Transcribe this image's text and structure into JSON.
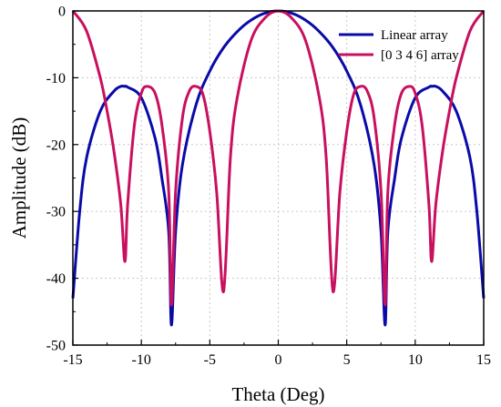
{
  "chart_data": {
    "type": "line",
    "xlabel": "Theta (Deg)",
    "ylabel": "Amplitude (dB)",
    "xlim": [
      -15,
      15
    ],
    "ylim": [
      -50,
      0
    ],
    "x_ticks": [
      -15,
      -10,
      -5,
      0,
      5,
      10,
      15
    ],
    "y_ticks": [
      0,
      -10,
      -20,
      -30,
      -40,
      -50
    ],
    "grid": true,
    "legend_position": "top-right",
    "series": [
      {
        "name": "Linear array",
        "color": "#0a0aa8",
        "x": [
          -15,
          -14.5,
          -14,
          -13,
          -12,
          -11.5,
          -11.2,
          -11,
          -10,
          -9,
          -8.5,
          -8,
          -7.8,
          -7.5,
          -7,
          -6,
          -5,
          -4,
          -3,
          -2,
          -1,
          0,
          1,
          2,
          3,
          4,
          5,
          6,
          7,
          7.5,
          7.8,
          8,
          8.5,
          9,
          10,
          11,
          11.2,
          11.5,
          12,
          13,
          14,
          14.5,
          15
        ],
        "y": [
          -43,
          -30,
          -22,
          -15,
          -12,
          -11.3,
          -11.3,
          -11.4,
          -13,
          -19,
          -25,
          -33,
          -47,
          -33,
          -23,
          -14,
          -9,
          -5.5,
          -3.1,
          -1.4,
          -0.35,
          0,
          -0.35,
          -1.4,
          -3.1,
          -5.5,
          -9,
          -14,
          -23,
          -33,
          -47,
          -33,
          -25,
          -19,
          -13,
          -11.4,
          -11.3,
          -11.3,
          -12,
          -15,
          -22,
          -30,
          -43
        ]
      },
      {
        "name": "[0 3 4 6] array",
        "color": "#c8105e",
        "x": [
          -15,
          -14,
          -13,
          -12.5,
          -12,
          -11.5,
          -11.2,
          -11,
          -10.5,
          -10,
          -9.6,
          -9,
          -8.5,
          -8,
          -7.8,
          -7.5,
          -7,
          -6.5,
          -6,
          -5.5,
          -5,
          -4.5,
          -4,
          -3.5,
          -3,
          -2,
          -1,
          0,
          1,
          2,
          3,
          3.5,
          4,
          4.5,
          5,
          5.5,
          6,
          6.5,
          7,
          7.5,
          7.8,
          8,
          8.5,
          9,
          9.6,
          10,
          10.5,
          11,
          11.2,
          11.5,
          12,
          12.5,
          13,
          14,
          15
        ],
        "y": [
          0,
          -3,
          -10,
          -15,
          -21,
          -29,
          -37.5,
          -29,
          -17,
          -12.3,
          -11.3,
          -12.3,
          -17,
          -27,
          -44,
          -27,
          -16,
          -12,
          -11.3,
          -12.5,
          -18,
          -27,
          -42,
          -22,
          -13,
          -4.5,
          -1.1,
          0,
          -1.1,
          -4.5,
          -13,
          -22,
          -42,
          -27,
          -18,
          -12.5,
          -11.3,
          -12,
          -16,
          -27,
          -44,
          -27,
          -17,
          -12.3,
          -11.3,
          -12.3,
          -17,
          -29,
          -37.5,
          -29,
          -21,
          -15,
          -10,
          -3,
          0
        ]
      }
    ]
  }
}
